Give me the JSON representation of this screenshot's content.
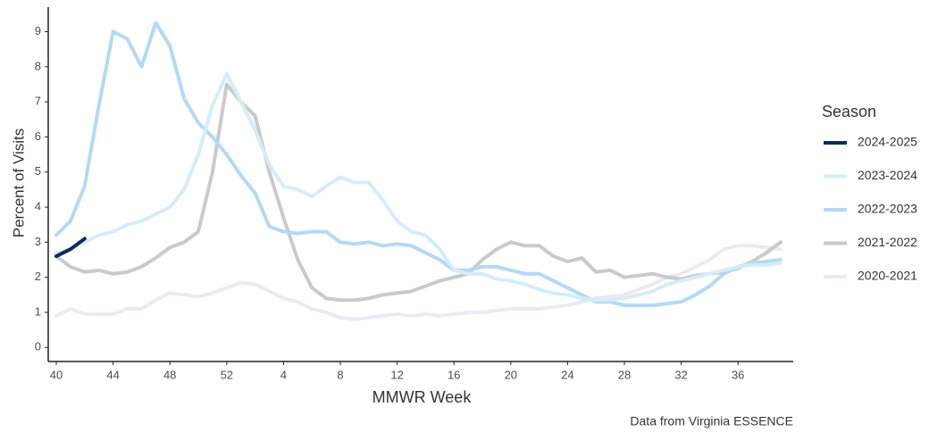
{
  "chart_data": {
    "type": "line",
    "y_label": "Percent of Visits",
    "x_label": "MMWR Week",
    "caption": "Data from Virginia ESSENCE",
    "legend_title": "Season",
    "legend": "right",
    "categories": [
      "40",
      null,
      null,
      null,
      "44",
      null,
      null,
      null,
      "48",
      null,
      null,
      null,
      "52",
      null,
      null,
      null,
      "4",
      null,
      null,
      null,
      "8",
      null,
      null,
      null,
      "12",
      null,
      null,
      null,
      "16",
      null,
      null,
      null,
      "20",
      null,
      null,
      null,
      "24",
      null,
      null,
      null,
      "28",
      null,
      null,
      null,
      "32",
      null,
      null,
      null,
      "36",
      null,
      null,
      null
    ],
    "ylim": [
      -0.4,
      9.7
    ],
    "yticks": [
      0,
      1,
      2,
      3,
      4,
      5,
      6,
      7,
      8,
      9
    ],
    "series": [
      {
        "name": "2024-2025",
        "color": "#0d2a5c",
        "values": [
          2.6,
          2.8,
          3.1,
          null,
          null,
          null,
          null,
          null,
          null,
          null,
          null,
          null,
          null,
          null,
          null,
          null,
          null,
          null,
          null,
          null,
          null,
          null,
          null,
          null,
          null,
          null,
          null,
          null,
          null,
          null,
          null,
          null,
          null,
          null,
          null,
          null,
          null,
          null,
          null,
          null,
          null,
          null,
          null,
          null,
          null,
          null,
          null,
          null,
          null,
          null,
          null,
          null
        ]
      },
      {
        "name": "2023-2024",
        "color": "#d4edf9",
        "values": [
          2.7,
          2.8,
          3.0,
          3.2,
          3.3,
          3.5,
          3.6,
          3.8,
          4.0,
          4.5,
          5.5,
          6.9,
          7.8,
          7.0,
          6.2,
          5.2,
          4.6,
          4.5,
          4.3,
          4.6,
          4.85,
          4.7,
          4.7,
          4.2,
          3.6,
          3.3,
          3.2,
          2.8,
          2.2,
          2.1,
          2.1,
          1.95,
          1.9,
          1.8,
          1.65,
          1.55,
          1.5,
          1.4,
          1.35,
          1.35,
          1.4,
          1.5,
          1.6,
          1.8,
          1.9,
          2.0,
          2.1,
          2.2,
          2.3,
          2.35,
          2.35,
          2.4
        ]
      },
      {
        "name": "2022-2023",
        "color": "#b3d9f5",
        "values": [
          3.2,
          3.6,
          4.6,
          6.9,
          9.0,
          8.8,
          8.0,
          9.25,
          8.6,
          7.1,
          6.4,
          6.0,
          5.5,
          4.9,
          4.4,
          3.45,
          3.3,
          3.25,
          3.3,
          3.3,
          3.0,
          2.95,
          3.0,
          2.9,
          2.95,
          2.9,
          2.7,
          2.5,
          2.2,
          2.2,
          2.3,
          2.3,
          2.2,
          2.1,
          2.1,
          1.9,
          1.7,
          1.5,
          1.3,
          1.3,
          1.2,
          1.2,
          1.2,
          1.25,
          1.3,
          1.5,
          1.75,
          2.1,
          2.3,
          2.4,
          2.45,
          2.5
        ]
      },
      {
        "name": "2021-2022",
        "color": "#c8cacc",
        "values": [
          2.6,
          2.3,
          2.15,
          2.2,
          2.1,
          2.15,
          2.3,
          2.55,
          2.85,
          3.0,
          3.3,
          5.0,
          7.5,
          7.0,
          6.6,
          5.0,
          3.7,
          2.5,
          1.7,
          1.4,
          1.35,
          1.35,
          1.4,
          1.5,
          1.55,
          1.6,
          1.75,
          1.9,
          2.0,
          2.1,
          2.5,
          2.8,
          3.0,
          2.9,
          2.9,
          2.6,
          2.45,
          2.55,
          2.15,
          2.2,
          2.0,
          2.05,
          2.1,
          2.0,
          1.95,
          2.05,
          2.1,
          2.15,
          2.25,
          2.45,
          2.7,
          3.0
        ]
      },
      {
        "name": "2020-2021",
        "color": "#ebe9f3",
        "values": [
          0.9,
          1.1,
          0.95,
          0.95,
          0.95,
          1.1,
          1.1,
          1.35,
          1.55,
          1.5,
          1.45,
          1.55,
          1.7,
          1.85,
          1.8,
          1.6,
          1.4,
          1.3,
          1.1,
          1.0,
          0.85,
          0.8,
          0.85,
          0.9,
          0.95,
          0.9,
          0.95,
          0.9,
          0.95,
          1.0,
          1.0,
          1.05,
          1.1,
          1.1,
          1.1,
          1.15,
          1.2,
          1.3,
          1.4,
          1.45,
          1.5,
          1.65,
          1.8,
          2.0,
          2.1,
          2.3,
          2.5,
          2.8,
          2.9,
          2.9,
          2.85,
          2.8
        ]
      }
    ]
  }
}
